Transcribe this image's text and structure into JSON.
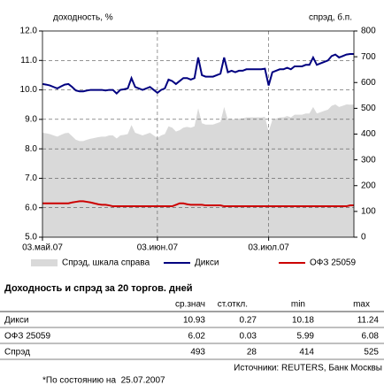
{
  "chart_data": {
    "type": "line",
    "y_label": "доходность, %",
    "y2_label": "спрэд, б.п.",
    "categories": [
      "03.май.07",
      null,
      null,
      null,
      null,
      null,
      null,
      null,
      null,
      null,
      null,
      null,
      null,
      null,
      null,
      null,
      null,
      null,
      null,
      null,
      null,
      null,
      null,
      null,
      null,
      null,
      null,
      null,
      null,
      null,
      null,
      "03.июн.07",
      null,
      null,
      null,
      null,
      null,
      null,
      null,
      null,
      null,
      null,
      null,
      null,
      null,
      null,
      null,
      null,
      null,
      null,
      null,
      null,
      null,
      null,
      null,
      null,
      null,
      null,
      null,
      null,
      null,
      "03.июл.07",
      null,
      null,
      null,
      null,
      null,
      null,
      null,
      null,
      null,
      null,
      null,
      null,
      null,
      null,
      null,
      null,
      null,
      null,
      null,
      null,
      null,
      null,
      null
    ],
    "series": [
      {
        "name": "Спрэд, шкала справа",
        "type": "area",
        "axis": "y2",
        "color": "#d9d9d9",
        "values": [
          405,
          403,
          400,
          395,
          390,
          397,
          403,
          405,
          392,
          378,
          373,
          373,
          378,
          382,
          385,
          388,
          390,
          390,
          395,
          395,
          383,
          395,
          397,
          400,
          435,
          405,
          400,
          395,
          400,
          405,
          395,
          385,
          395,
          400,
          430,
          425,
          410,
          415,
          425,
          428,
          425,
          430,
          500,
          442,
          437,
          437,
          437,
          442,
          447,
          505,
          455,
          460,
          455,
          460,
          460,
          465,
          465,
          465,
          465,
          465,
          467,
          410,
          455,
          460,
          465,
          465,
          470,
          465,
          475,
          475,
          475,
          480,
          480,
          505,
          480,
          485,
          490,
          495,
          510,
          515,
          505,
          510,
          515,
          514,
          514
        ]
      },
      {
        "name": "Дикси",
        "type": "line",
        "color": "#000080",
        "values": [
          10.2,
          10.18,
          10.15,
          10.1,
          10.05,
          10.12,
          10.18,
          10.2,
          10.1,
          9.98,
          9.95,
          9.95,
          9.98,
          10.0,
          10.0,
          10.0,
          10.0,
          9.98,
          10.0,
          10.0,
          9.88,
          10.0,
          10.02,
          10.05,
          10.4,
          10.1,
          10.05,
          10.0,
          10.05,
          10.1,
          10.0,
          9.9,
          10.0,
          10.05,
          10.35,
          10.3,
          10.2,
          10.3,
          10.4,
          10.4,
          10.35,
          10.4,
          11.1,
          10.5,
          10.45,
          10.45,
          10.45,
          10.5,
          10.55,
          11.1,
          10.6,
          10.65,
          10.6,
          10.65,
          10.65,
          10.7,
          10.7,
          10.7,
          10.7,
          10.7,
          10.72,
          10.15,
          10.6,
          10.65,
          10.7,
          10.7,
          10.75,
          10.7,
          10.8,
          10.8,
          10.8,
          10.85,
          10.85,
          11.1,
          10.85,
          10.9,
          10.95,
          11.0,
          11.15,
          11.2,
          11.1,
          11.15,
          11.2,
          11.22,
          11.22
        ]
      },
      {
        "name": "ОФЗ 25059",
        "type": "line",
        "color": "#cc0000",
        "values": [
          6.15,
          6.15,
          6.15,
          6.15,
          6.15,
          6.15,
          6.15,
          6.15,
          6.18,
          6.2,
          6.22,
          6.22,
          6.2,
          6.18,
          6.15,
          6.12,
          6.1,
          6.1,
          6.08,
          6.05,
          6.05,
          6.05,
          6.05,
          6.05,
          6.05,
          6.05,
          6.05,
          6.05,
          6.05,
          6.05,
          6.05,
          6.05,
          6.05,
          6.05,
          6.05,
          6.05,
          6.1,
          6.15,
          6.15,
          6.12,
          6.1,
          6.1,
          6.1,
          6.1,
          6.08,
          6.08,
          6.08,
          6.08,
          6.08,
          6.05,
          6.05,
          6.05,
          6.05,
          6.05,
          6.05,
          6.05,
          6.05,
          6.05,
          6.05,
          6.05,
          6.05,
          6.05,
          6.05,
          6.05,
          6.05,
          6.05,
          6.05,
          6.05,
          6.05,
          6.05,
          6.05,
          6.05,
          6.05,
          6.05,
          6.05,
          6.05,
          6.05,
          6.05,
          6.05,
          6.05,
          6.05,
          6.05,
          6.05,
          6.08,
          6.08
        ]
      }
    ],
    "ylim": [
      5,
      12
    ],
    "yticks": [
      {
        "value": 5,
        "label": "5.0"
      },
      {
        "value": 6,
        "label": "6.0"
      },
      {
        "value": 7,
        "label": "7.0"
      },
      {
        "value": 8,
        "label": "8.0"
      },
      {
        "value": 9,
        "label": "9.0"
      },
      {
        "value": 10,
        "label": "10.0"
      },
      {
        "value": 11,
        "label": "11.0"
      },
      {
        "value": 12,
        "label": "12.0"
      }
    ],
    "y2lim": [
      0,
      800
    ],
    "y2ticks": [
      0,
      100,
      200,
      300,
      400,
      500,
      600,
      700,
      800
    ],
    "grid": true
  },
  "table": {
    "title": "Доходность и спрэд за 20 торгов. дней",
    "columns": [
      "ср.знач",
      "ст.откл.",
      "min",
      "max"
    ],
    "rows": [
      [
        "Дикси",
        "10.93",
        "0.27",
        "10.18",
        "11.24"
      ],
      [
        "ОФЗ 25059",
        "6.02",
        "0.03",
        "5.99",
        "6.08"
      ],
      [
        "Спрэд",
        "493",
        "28",
        "414",
        "525"
      ]
    ]
  },
  "source": "Источники: REUTERS, Банк Москвы",
  "note": "*По состоянию на  25.07.2007"
}
